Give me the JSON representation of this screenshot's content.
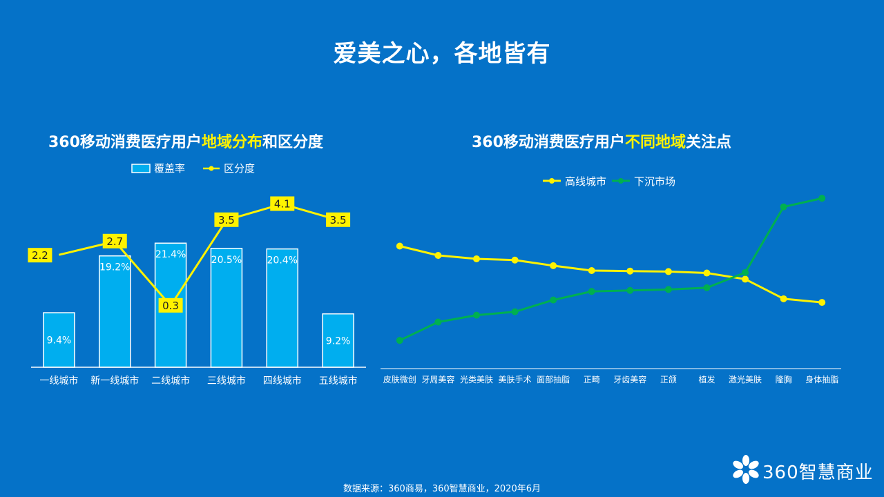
{
  "page": {
    "title": "爱美之心，各地皆有",
    "source": "数据来源：360商易，360智慧商业，2020年6月",
    "logo_text": "360智慧商业",
    "logo_icon": "asterisk-flower-icon"
  },
  "colors": {
    "background": "#0572c8",
    "bar_fill": "#00aeef",
    "yellow": "#fff200",
    "green": "#00b050",
    "label_box": "#fff200"
  },
  "chart_data": [
    {
      "type": "bar",
      "title_parts": [
        "360移动消费医疗用户",
        "地域分布",
        "和区分度"
      ],
      "legend": [
        "覆盖率",
        "区分度"
      ],
      "categories": [
        "一线城市",
        "新一线城市",
        "二线城市",
        "三线城市",
        "四线城市",
        "五线城市"
      ],
      "series": [
        {
          "name": "覆盖率",
          "kind": "bar",
          "values": [
            9.4,
            19.2,
            21.4,
            20.5,
            20.4,
            9.2
          ],
          "labels": [
            "9.4%",
            "19.2%",
            "21.4%",
            "20.5%",
            "20.4%",
            "9.2%"
          ]
        },
        {
          "name": "区分度",
          "kind": "line",
          "values": [
            2.2,
            2.7,
            0.3,
            3.5,
            4.1,
            3.5
          ],
          "labels": [
            "2.2",
            "2.7",
            "0.3",
            "3.5",
            "4.1",
            "3.5"
          ]
        }
      ],
      "bar_ylim": [
        0,
        30
      ],
      "line_ylim": [
        -2,
        4.5
      ],
      "grid": false
    },
    {
      "type": "line",
      "title_parts": [
        "360移动消费医疗用户",
        "不同地域",
        "关注点"
      ],
      "legend": [
        "高线城市",
        "下沉市场"
      ],
      "categories": [
        "皮肤微创",
        "牙周美容",
        "光类美肤",
        "美肤手术",
        "面部抽脂",
        "正畸",
        "牙齿美容",
        "正颌",
        "植发",
        "激光美肤",
        "隆胸",
        "身体抽脂"
      ],
      "series": [
        {
          "name": "高线城市",
          "values": [
            5.0,
            4.62,
            4.48,
            4.43,
            4.2,
            4.0,
            3.98,
            3.96,
            3.9,
            3.65,
            2.85,
            2.7
          ]
        },
        {
          "name": "下沉市场",
          "values": [
            1.15,
            1.9,
            2.18,
            2.32,
            2.8,
            3.15,
            3.19,
            3.23,
            3.3,
            3.92,
            6.6,
            6.95
          ]
        }
      ],
      "ylim": [
        0,
        8
      ],
      "y_axis_visible": false,
      "grid": false,
      "legend_position": "top"
    }
  ]
}
